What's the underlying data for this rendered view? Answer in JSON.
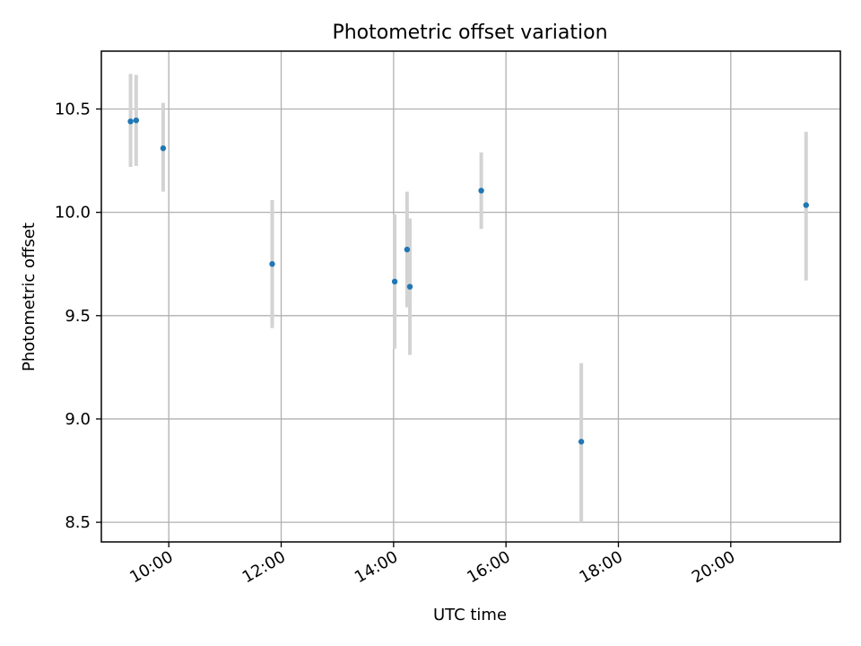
{
  "chart_data": {
    "type": "scatter",
    "title": "Photometric offset variation",
    "xlabel": "UTC time",
    "ylabel": "Photometric offset",
    "x_unit": "hours (UTC)",
    "xlim": [
      8.8,
      21.95
    ],
    "ylim": [
      8.405,
      10.78
    ],
    "x_ticks": [
      {
        "value": 10,
        "label": "10:00"
      },
      {
        "value": 12,
        "label": "12:00"
      },
      {
        "value": 14,
        "label": "14:00"
      },
      {
        "value": 16,
        "label": "16:00"
      },
      {
        "value": 18,
        "label": "18:00"
      },
      {
        "value": 20,
        "label": "20:00"
      }
    ],
    "y_ticks": [
      {
        "value": 8.5,
        "label": "8.5"
      },
      {
        "value": 9.0,
        "label": "9.0"
      },
      {
        "value": 9.5,
        "label": "9.5"
      },
      {
        "value": 10.0,
        "label": "10.0"
      },
      {
        "value": 10.5,
        "label": "10.5"
      }
    ],
    "grid": true,
    "legend": "none",
    "points": [
      {
        "time": "09:19",
        "x": 9.32,
        "y": 10.44,
        "low": 10.22,
        "high": 10.67
      },
      {
        "time": "09:25",
        "x": 9.42,
        "y": 10.445,
        "low": 10.225,
        "high": 10.665
      },
      {
        "time": "09:54",
        "x": 9.9,
        "y": 10.31,
        "low": 10.1,
        "high": 10.53
      },
      {
        "time": "11:50",
        "x": 11.84,
        "y": 9.75,
        "low": 9.44,
        "high": 10.06
      },
      {
        "time": "14:01",
        "x": 14.02,
        "y": 9.665,
        "low": 9.34,
        "high": 9.99
      },
      {
        "time": "14:14",
        "x": 14.24,
        "y": 9.82,
        "low": 9.54,
        "high": 10.1
      },
      {
        "time": "14:17",
        "x": 14.29,
        "y": 9.64,
        "low": 9.31,
        "high": 9.97
      },
      {
        "time": "15:33",
        "x": 15.56,
        "y": 10.105,
        "low": 9.92,
        "high": 10.29
      },
      {
        "time": "17:20",
        "x": 17.34,
        "y": 8.89,
        "low": 8.5,
        "high": 9.27
      },
      {
        "time": "21:20",
        "x": 21.34,
        "y": 10.035,
        "low": 9.67,
        "high": 10.39
      }
    ],
    "colors": {
      "marker": "#1f77b4",
      "errorbar": "#d3d3d3",
      "grid": "#b0b0b0",
      "axes": "#000000"
    }
  }
}
